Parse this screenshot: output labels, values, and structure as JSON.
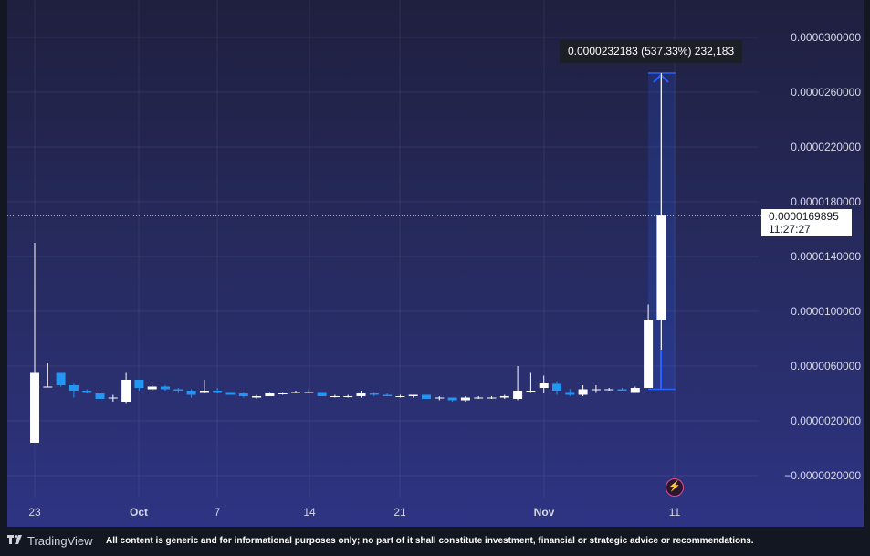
{
  "chart_data": {
    "type": "candlestick",
    "y_ticks": [
      "0.0000300000",
      "0.0000260000",
      "0.0000220000",
      "0.0000180000",
      "0.0000140000",
      "0.0000100000",
      "0.0000060000",
      "0.0000020000",
      "−0.0000020000"
    ],
    "ylim": [
      -2.5e-06,
      3.27e-05
    ],
    "x_ticks": [
      {
        "label": "23",
        "bold": false
      },
      {
        "label": "Oct",
        "bold": true
      },
      {
        "label": "7",
        "bold": false
      },
      {
        "label": "14",
        "bold": false
      },
      {
        "label": "21",
        "bold": false
      },
      {
        "label": "Nov",
        "bold": true
      },
      {
        "label": "11",
        "bold": false
      }
    ],
    "candles": [
      {
        "o": 4e-07,
        "h": 1.5e-05,
        "l": 4e-07,
        "c": 5.5e-06
      },
      {
        "o": 4.5e-06,
        "h": 6.2e-06,
        "l": 4.5e-06,
        "c": 4.5e-06
      },
      {
        "o": 5.5e-06,
        "h": 5.5e-06,
        "l": 4.5e-06,
        "c": 4.6e-06
      },
      {
        "o": 4.6e-06,
        "h": 4.7e-06,
        "l": 3.7e-06,
        "c": 4.2e-06
      },
      {
        "o": 4.2e-06,
        "h": 4.3e-06,
        "l": 4e-06,
        "c": 4.1e-06
      },
      {
        "o": 4e-06,
        "h": 4.1e-06,
        "l": 3.5e-06,
        "c": 3.6e-06
      },
      {
        "o": 3.7e-06,
        "h": 3.9e-06,
        "l": 3.4e-06,
        "c": 3.7e-06
      },
      {
        "o": 3.4e-06,
        "h": 5.5e-06,
        "l": 3.3e-06,
        "c": 5e-06
      },
      {
        "o": 5e-06,
        "h": 5e-06,
        "l": 4.2e-06,
        "c": 4.4e-06
      },
      {
        "o": 4.3e-06,
        "h": 4.6e-06,
        "l": 4.2e-06,
        "c": 4.5e-06
      },
      {
        "o": 4.5e-06,
        "h": 4.6e-06,
        "l": 4.2e-06,
        "c": 4.3e-06
      },
      {
        "o": 4.3e-06,
        "h": 4.4e-06,
        "l": 4.1e-06,
        "c": 4.2e-06
      },
      {
        "o": 4.2e-06,
        "h": 4.3e-06,
        "l": 3.7e-06,
        "c": 3.9e-06
      },
      {
        "o": 4.1e-06,
        "h": 5e-06,
        "l": 4e-06,
        "c": 4.2e-06
      },
      {
        "o": 4.2e-06,
        "h": 4.4e-06,
        "l": 4e-06,
        "c": 4.1e-06
      },
      {
        "o": 4.1e-06,
        "h": 4.1e-06,
        "l": 3.9e-06,
        "c": 3.9e-06
      },
      {
        "o": 4e-06,
        "h": 4.1e-06,
        "l": 3.7e-06,
        "c": 3.8e-06
      },
      {
        "o": 3.7e-06,
        "h": 3.9e-06,
        "l": 3.6e-06,
        "c": 3.8e-06
      },
      {
        "o": 3.8e-06,
        "h": 4.1e-06,
        "l": 3.8e-06,
        "c": 4e-06
      },
      {
        "o": 4e-06,
        "h": 4.1e-06,
        "l": 3.9e-06,
        "c": 4e-06
      },
      {
        "o": 4e-06,
        "h": 4.2e-06,
        "l": 4e-06,
        "c": 4.1e-06
      },
      {
        "o": 4.1e-06,
        "h": 4.3e-06,
        "l": 4e-06,
        "c": 4.1e-06
      },
      {
        "o": 4.1e-06,
        "h": 4.1e-06,
        "l": 3.8e-06,
        "c": 3.8e-06
      },
      {
        "o": 3.8e-06,
        "h": 3.9e-06,
        "l": 3.7e-06,
        "c": 3.8e-06
      },
      {
        "o": 3.8e-06,
        "h": 3.9e-06,
        "l": 3.7e-06,
        "c": 3.8e-06
      },
      {
        "o": 3.8e-06,
        "h": 4.2e-06,
        "l": 3.7e-06,
        "c": 4e-06
      },
      {
        "o": 4e-06,
        "h": 4.1e-06,
        "l": 3.8e-06,
        "c": 3.9e-06
      },
      {
        "o": 3.9e-06,
        "h": 4e-06,
        "l": 3.8e-06,
        "c": 3.8e-06
      },
      {
        "o": 3.8e-06,
        "h": 3.9e-06,
        "l": 3.7e-06,
        "c": 3.8e-06
      },
      {
        "o": 3.8e-06,
        "h": 3.9e-06,
        "l": 3.7e-06,
        "c": 3.9e-06
      },
      {
        "o": 3.9e-06,
        "h": 3.9e-06,
        "l": 3.6e-06,
        "c": 3.6e-06
      },
      {
        "o": 3.7e-06,
        "h": 3.8e-06,
        "l": 3.5e-06,
        "c": 3.7e-06
      },
      {
        "o": 3.7e-06,
        "h": 3.7e-06,
        "l": 3.4e-06,
        "c": 3.5e-06
      },
      {
        "o": 3.5e-06,
        "h": 3.8e-06,
        "l": 3.4e-06,
        "c": 3.7e-06
      },
      {
        "o": 3.7e-06,
        "h": 3.8e-06,
        "l": 3.6e-06,
        "c": 3.7e-06
      },
      {
        "o": 3.7e-06,
        "h": 3.8e-06,
        "l": 3.6e-06,
        "c": 3.7e-06
      },
      {
        "o": 3.7e-06,
        "h": 3.9e-06,
        "l": 3.6e-06,
        "c": 3.8e-06
      },
      {
        "o": 3.6e-06,
        "h": 6e-06,
        "l": 3.5e-06,
        "c": 4.2e-06
      },
      {
        "o": 4.2e-06,
        "h": 5.5e-06,
        "l": 4.1e-06,
        "c": 4.2e-06
      },
      {
        "o": 4.4e-06,
        "h": 5.3e-06,
        "l": 4e-06,
        "c": 4.8e-06
      },
      {
        "o": 4.7e-06,
        "h": 4.9e-06,
        "l": 3.9e-06,
        "c": 4.2e-06
      },
      {
        "o": 4.1e-06,
        "h": 4.3e-06,
        "l": 3.8e-06,
        "c": 3.9e-06
      },
      {
        "o": 3.9e-06,
        "h": 4.6e-06,
        "l": 3.8e-06,
        "c": 4.3e-06
      },
      {
        "o": 4.3e-06,
        "h": 4.6e-06,
        "l": 4.1e-06,
        "c": 4.3e-06
      },
      {
        "o": 4.3e-06,
        "h": 4.4e-06,
        "l": 4.2e-06,
        "c": 4.3e-06
      },
      {
        "o": 4.3e-06,
        "h": 4.4e-06,
        "l": 4.2e-06,
        "c": 4.2e-06
      },
      {
        "o": 4.1e-06,
        "h": 4.5e-06,
        "l": 4.1e-06,
        "c": 4.4e-06
      },
      {
        "o": 4.4e-06,
        "h": 1.05e-05,
        "l": 4.4e-06,
        "c": 9.4e-06
      },
      {
        "o": 9.4e-06,
        "h": 2.74e-05,
        "l": 7.2e-06,
        "c": 1.69895e-05
      }
    ],
    "current_price": "0.0000169895",
    "countdown": "11:27:27",
    "measure_label": "0.0000232183 (537.33%) 232,183",
    "colors": {
      "up": "#ffffff",
      "down": "#2196f3",
      "measure": "#2962ff"
    }
  },
  "footer": {
    "brand": "TradingView",
    "disclaimer": "All content is generic and for informational purposes only; no part of it shall constitute investment, financial or strategic advice or recommendations."
  }
}
